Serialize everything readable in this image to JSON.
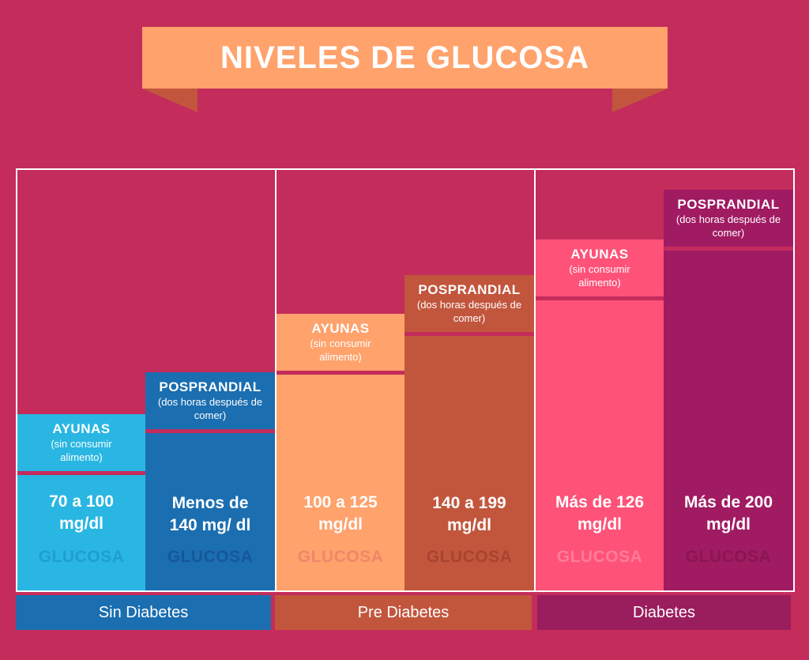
{
  "title": "NIVELES DE GLUCOSA",
  "colors": {
    "background": "#c42c5c",
    "banner": "#ffa26c",
    "sin_diabetes": "#1f6fae",
    "pre_diabetes": "#c2563d",
    "diabetes": "#9a1d5d"
  },
  "bars": [
    {
      "label": "AYUNAS",
      "sub": "(sin consumir alimento)",
      "value": "70 a 100 mg/dl",
      "glucosa": "GLUCOSA"
    },
    {
      "label": "POSPRANDIAL",
      "sub": "(dos horas después de comer)",
      "value": "Menos de 140 mg/ dl",
      "glucosa": "GLUCOSA"
    },
    {
      "label": "AYUNAS",
      "sub": "(sin consumir alimento)",
      "value": "100 a 125 mg/dl",
      "glucosa": "GLUCOSA"
    },
    {
      "label": "POSPRANDIAL",
      "sub": "(dos horas después de comer)",
      "value": "140 a 199 mg/dl",
      "glucosa": "GLUCOSA"
    },
    {
      "label": "AYUNAS",
      "sub": "(sin consumir alimento)",
      "value": "Más de 126 mg/dl",
      "glucosa": "GLUCOSA"
    },
    {
      "label": "POSPRANDIAL",
      "sub": "(dos horas después de comer)",
      "value": "Más de 200 mg/dl",
      "glucosa": "GLUCOSA"
    }
  ],
  "categories": [
    "Sin Diabetes",
    "Pre Diabetes",
    "Diabetes"
  ]
}
